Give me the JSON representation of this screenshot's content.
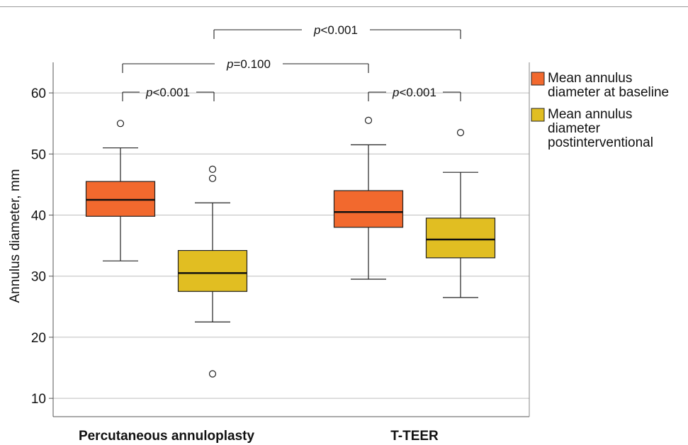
{
  "chart_data": {
    "type": "box",
    "ylabel": "Annulus diameter, mm",
    "ylim": [
      7,
      65
    ],
    "yticks": [
      10,
      20,
      30,
      40,
      50,
      60
    ],
    "grid": true,
    "legend_position": "right",
    "categories": [
      "Percutaneous annuloplasty",
      "T-TEER"
    ],
    "colors": {
      "baseline": "#f2692e",
      "post": "#e1be22"
    },
    "series": [
      {
        "name": "Mean annulus diameter at baseline",
        "key": "baseline",
        "boxes": [
          {
            "whisker_low": 32.5,
            "q1": 39.8,
            "median": 42.5,
            "q3": 45.5,
            "whisker_high": 51,
            "outliers": [
              55
            ]
          },
          {
            "whisker_low": 29.5,
            "q1": 38.0,
            "median": 40.5,
            "q3": 44.0,
            "whisker_high": 51.5,
            "outliers": [
              55.5
            ]
          }
        ]
      },
      {
        "name": "Mean annulus diameter postinterventional",
        "key": "post",
        "boxes": [
          {
            "whisker_low": 22.5,
            "q1": 27.5,
            "median": 30.5,
            "q3": 34.2,
            "whisker_high": 42,
            "outliers": [
              46,
              47.5,
              14
            ]
          },
          {
            "whisker_low": 26.5,
            "q1": 33.0,
            "median": 36.0,
            "q3": 39.5,
            "whisker_high": 47,
            "outliers": [
              53.5
            ]
          }
        ]
      }
    ],
    "annotations": [
      {
        "label": "p<0.001",
        "between": [
          "Percutaneous annuloplasty baseline",
          "Percutaneous annuloplasty postinterventional"
        ]
      },
      {
        "label": "p=0.100",
        "between": [
          "Percutaneous annuloplasty baseline",
          "T-TEER baseline"
        ]
      },
      {
        "label": "p<0.001",
        "between": [
          "Percutaneous annuloplasty postinterventional",
          "T-TEER postinterventional"
        ]
      },
      {
        "label": "p<0.001",
        "between": [
          "T-TEER baseline",
          "T-TEER postinterventional"
        ]
      }
    ],
    "legend": [
      {
        "key": "baseline",
        "lines": [
          "Mean annulus",
          "diameter at baseline"
        ]
      },
      {
        "key": "post",
        "lines": [
          "Mean annulus",
          "diameter",
          "postinterventional"
        ]
      }
    ]
  }
}
